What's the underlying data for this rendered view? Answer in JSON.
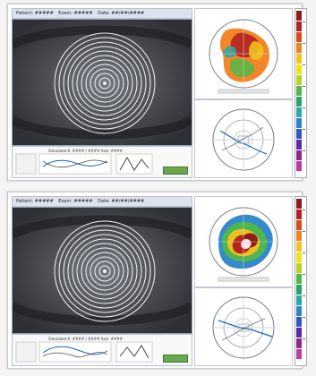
{
  "panels": [
    {
      "top_bar": {
        "left_text": "Patient: #####",
        "middle_text": "Exam: #####",
        "right_text": "Date: ##/##/####"
      },
      "info_title": "Simulated K: #### / #### Axis: ####",
      "labels": {
        "axis_left": "",
        "axis_right": ""
      },
      "map_colors": [
        "#8b1a1a",
        "#b22222",
        "#d94a1f",
        "#f08020",
        "#f2c21b",
        "#e9e21c",
        "#b8d321",
        "#4fb84a",
        "#2aa36b",
        "#2ea7a8",
        "#2a84c9",
        "#3156c6",
        "#5a2aa8",
        "#8a2a8b",
        "#c13aa3"
      ],
      "scale_colors": [
        "#8b1a1a",
        "#b22222",
        "#d94a1f",
        "#f08020",
        "#f2c21b",
        "#e9e21c",
        "#b8d321",
        "#4fb84a",
        "#2aa36b",
        "#2ea7a8",
        "#2a84c9",
        "#3156c6",
        "#5a2aa8",
        "#8a2a8b",
        "#c13aa3"
      ],
      "map_style": "irregular"
    },
    {
      "top_bar": {
        "left_text": "Patient: #####",
        "middle_text": "Exam: #####",
        "right_text": "Date: ##/##/####"
      },
      "info_title": "Simulated K: #### / #### Axis: ####",
      "labels": {
        "axis_left": "",
        "axis_right": ""
      },
      "map_colors": [
        "#2a84c9",
        "#2aa36b",
        "#4fb84a",
        "#b8d321",
        "#e9e21c",
        "#f2c21b",
        "#f08020",
        "#d94a1f",
        "#b22222",
        "#8b1a1a",
        "#6a0d0d",
        "#5a2aa8",
        "#8a2a8b",
        "#c13aa3",
        "#2ea7a8"
      ],
      "scale_colors": [
        "#8b1a1a",
        "#b22222",
        "#d94a1f",
        "#f08020",
        "#f2c21b",
        "#e9e21c",
        "#b8d321",
        "#4fb84a",
        "#2aa36b",
        "#2ea7a8",
        "#2a84c9",
        "#3156c6",
        "#5a2aa8",
        "#8a2a8b",
        "#c13aa3"
      ],
      "map_style": "keratoconus"
    }
  ]
}
